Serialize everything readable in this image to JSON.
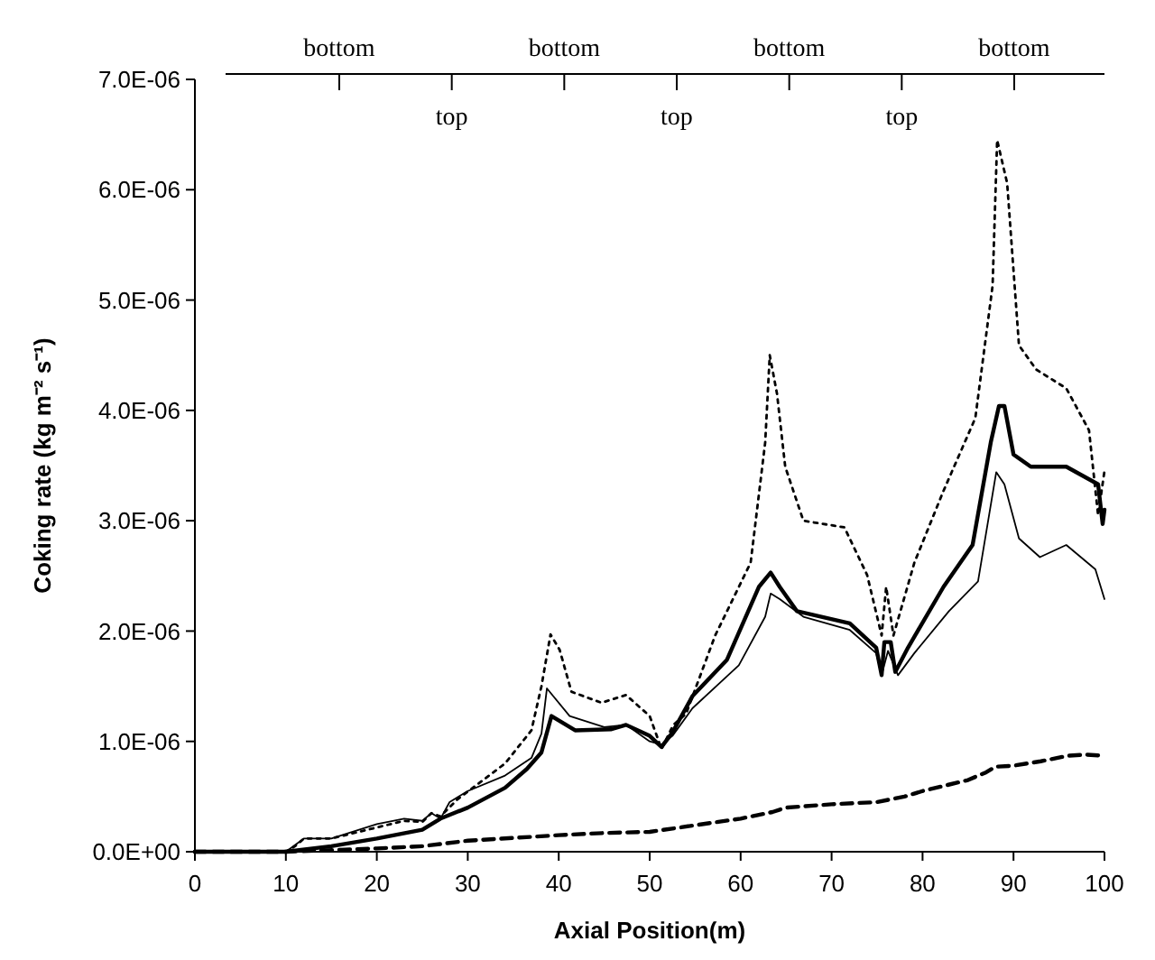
{
  "chart_data": {
    "type": "line",
    "xlabel": "Axial Position(m)",
    "ylabel": "Coking rate (kg m⁻² s⁻¹)",
    "xlim": [
      0,
      100
    ],
    "xticks": [
      0,
      10,
      20,
      30,
      40,
      50,
      60,
      70,
      80,
      90,
      100
    ],
    "ylim": [
      0,
      7e-06
    ],
    "yticks": [
      {
        "value": 0,
        "label": "0.0E+00"
      },
      {
        "value": 1e-06,
        "label": "1.0E-06"
      },
      {
        "value": 2e-06,
        "label": "2.0E-06"
      },
      {
        "value": 3e-06,
        "label": "3.0E-06"
      },
      {
        "value": 4e-06,
        "label": "4.0E-06"
      },
      {
        "value": 5e-06,
        "label": "5.0E-06"
      },
      {
        "value": 6e-06,
        "label": "6.0E-06"
      },
      {
        "value": 7e-06,
        "label": "7.0E-06"
      }
    ],
    "annotations": [
      "bottom",
      "top",
      "bottom",
      "top",
      "bottom",
      "top",
      "bottom"
    ],
    "grid": false,
    "series": [
      {
        "color": "#000000",
        "line_style": "dotted",
        "x": [
          0,
          10,
          11,
          12,
          15,
          20,
          23,
          25,
          26,
          27,
          28.8,
          34.1,
          37,
          38.1,
          39.1,
          40.1,
          41.4,
          44.7,
          47.4,
          50,
          51.3,
          52.6,
          54,
          57.2,
          61.1,
          62.7,
          63.2,
          64,
          64.9,
          66.9,
          71.4,
          73.9,
          75.5,
          76,
          76.8,
          79.1,
          82.3,
          85.8,
          87.7,
          88.2,
          89.3,
          90.6,
          92.5,
          95.8,
          98.3,
          99.3,
          100
        ],
        "values": [
          0,
          0,
          5e-08,
          1.2e-07,
          1.2e-07,
          2.2e-07,
          2.8e-07,
          2.7e-07,
          3.5e-07,
          3.2e-07,
          4.7e-07,
          8e-07,
          1.1e-06,
          1.5e-06,
          1.97e-06,
          1.83e-06,
          1.45e-06,
          1.35e-06,
          1.42e-06,
          1.23e-06,
          9.3e-07,
          1.15e-06,
          1.25e-06,
          1.96e-06,
          2.62e-06,
          3.71e-06,
          4.5e-06,
          4.15e-06,
          3.49e-06,
          3e-06,
          2.94e-06,
          2.51e-06,
          1.96e-06,
          2.4e-06,
          1.96e-06,
          2.62e-06,
          3.27e-06,
          3.93e-06,
          5.13e-06,
          6.45e-06,
          6.06e-06,
          4.59e-06,
          4.37e-06,
          4.2e-06,
          3.82e-06,
          3.05e-06,
          3.45e-06
        ]
      },
      {
        "color": "#000000",
        "line_style": "solid",
        "x": [
          0,
          10,
          15,
          20,
          25,
          27,
          30,
          34.1,
          36.5,
          38.1,
          39.2,
          41.8,
          45.8,
          47.4,
          50,
          51.3,
          52.5,
          54.7,
          58.5,
          62,
          63.3,
          64.3,
          66.2,
          72,
          74.9,
          75.5,
          75.8,
          76.5,
          77,
          78.4,
          82.3,
          85.5,
          87.5,
          88.4,
          89,
          90,
          91.9,
          95.8,
          99.3,
          99.8,
          100
        ],
        "values": [
          0,
          0,
          5e-08,
          1.2e-07,
          2e-07,
          3e-07,
          4e-07,
          5.8e-07,
          7.5e-07,
          9e-07,
          1.23e-06,
          1.1e-06,
          1.11e-06,
          1.15e-06,
          1.05e-06,
          9.5e-07,
          1.08e-06,
          1.41e-06,
          1.74e-06,
          2.4e-06,
          2.53e-06,
          2.4e-06,
          2.18e-06,
          2.07e-06,
          1.85e-06,
          1.6e-06,
          1.9e-06,
          1.9e-06,
          1.63e-06,
          1.85e-06,
          2.4e-06,
          2.78e-06,
          3.71e-06,
          4.04e-06,
          4.04e-06,
          3.6e-06,
          3.49e-06,
          3.49e-06,
          3.33e-06,
          2.97e-06,
          3.1e-06
        ]
      },
      {
        "color": "#000000",
        "line_style": "solid",
        "x": [
          0,
          10,
          12,
          15,
          20,
          23,
          25,
          26,
          27,
          28,
          30,
          34.1,
          37,
          38.1,
          38.7,
          41.2,
          45,
          47.4,
          50,
          51.3,
          52.5,
          54.7,
          59.8,
          62.7,
          63.3,
          64.3,
          66.9,
          72,
          74.9,
          75.5,
          76.2,
          77.3,
          79.1,
          82.9,
          86.1,
          88.1,
          89,
          90.6,
          92.9,
          95.8,
          99,
          100
        ],
        "values": [
          0,
          0,
          1.2e-07,
          1.2e-07,
          2.5e-07,
          3e-07,
          2.8e-07,
          3.5e-07,
          3e-07,
          4.5e-07,
          5.5e-07,
          6.9e-07,
          8.5e-07,
          1.07e-06,
          1.48e-06,
          1.23e-06,
          1.13e-06,
          1.15e-06,
          1e-06,
          9.7e-07,
          1.05e-06,
          1.3e-06,
          1.69e-06,
          2.13e-06,
          2.34e-06,
          2.29e-06,
          2.13e-06,
          2.01e-06,
          1.8e-06,
          1.6e-06,
          1.82e-06,
          1.6e-06,
          1.8e-06,
          2.18e-06,
          2.45e-06,
          3.44e-06,
          3.33e-06,
          2.84e-06,
          2.67e-06,
          2.78e-06,
          2.56e-06,
          2.29e-06
        ]
      },
      {
        "color": "#000000",
        "line_style": "dashed",
        "x": [
          0,
          10,
          20,
          25,
          30,
          40,
          45,
          50,
          55,
          60,
          63.5,
          65,
          70,
          75,
          78,
          80,
          85,
          87,
          88,
          90,
          93,
          96,
          98,
          100
        ],
        "values": [
          0,
          0,
          3e-08,
          5e-08,
          1e-07,
          1.5e-07,
          1.7e-07,
          1.8e-07,
          2.4e-07,
          3e-07,
          3.6e-07,
          4e-07,
          4.3e-07,
          4.5e-07,
          5e-07,
          5.5e-07,
          6.5e-07,
          7.2e-07,
          7.7e-07,
          7.8e-07,
          8.2e-07,
          8.7e-07,
          8.8e-07,
          8.7e-07
        ]
      }
    ]
  }
}
